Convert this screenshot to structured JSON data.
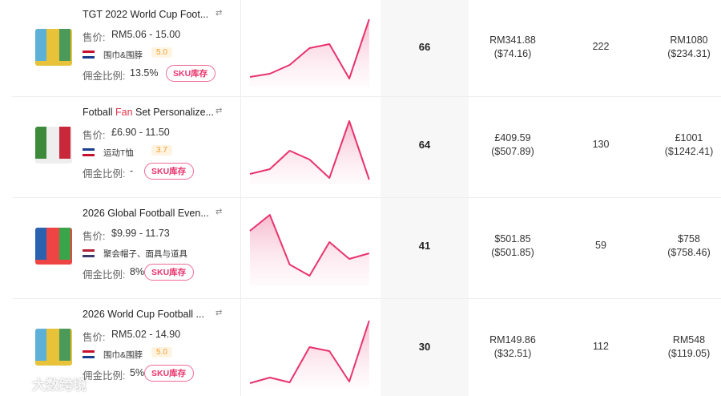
{
  "rows": [
    {
      "title": [
        "TGT 2022 World Cup Foot..."
      ],
      "price_label": "售价:",
      "price": "RM5.06 - 15.00",
      "category": "围巾&围脖",
      "rating": "5.0",
      "commission_label": "佣金比例:",
      "commission": "13.5%",
      "sku": "SKU库存",
      "trend": [
        9,
        13,
        24,
        45,
        50,
        7,
        81
      ],
      "sales": 66,
      "revenue": "RM341.88",
      "revenue_usd": "($74.16)",
      "count": 222,
      "total": "RM1080",
      "total_usd": "($234.31)"
    },
    {
      "title": [
        "Fotball ",
        "Fan",
        " Set Personalize..."
      ],
      "price_label": "售价:",
      "price": "£6.90 - 11.50",
      "category": "运动T恤",
      "rating": "3.7",
      "commission_label": "佣金比例:",
      "commission": "-",
      "sku": "SKU库存",
      "trend": [
        10,
        16,
        39,
        28,
        5,
        76,
        3
      ],
      "sales": 64,
      "revenue": "£409.59",
      "revenue_usd": "($507.89)",
      "count": 130,
      "total": "£1001",
      "total_usd": "($1242.41)"
    },
    {
      "title": [
        "2026 Global Football Even..."
      ],
      "price_label": "售价:",
      "price": "$9.99 - 11.73",
      "category": "聚会帽子、面具与道具",
      "commission_label": "佣金比例:",
      "commission": "8%",
      "sku": "SKU库存",
      "trend": [
        65,
        85,
        23,
        9,
        51,
        30,
        37
      ],
      "sales": 41,
      "revenue": "$501.85",
      "revenue_usd": "($501.85)",
      "count": 59,
      "total": "$758",
      "total_usd": "($758.46)"
    },
    {
      "title": [
        "2026 World Cup Football ..."
      ],
      "price_label": "售价:",
      "price": "RM5.02 - 14.90",
      "category": "围巾&围脖",
      "rating": "5.0",
      "commission_label": "佣金比例:",
      "commission": "5%",
      "sku": "SKU库存",
      "trend": [
        1,
        8,
        2,
        46,
        41,
        3,
        79
      ],
      "sales": 30,
      "revenue": "RM149.86",
      "revenue_usd": "($32.51)",
      "count": 112,
      "total": "RM548",
      "total_usd": "($119.05)"
    }
  ],
  "watermark": "大数跨境"
}
